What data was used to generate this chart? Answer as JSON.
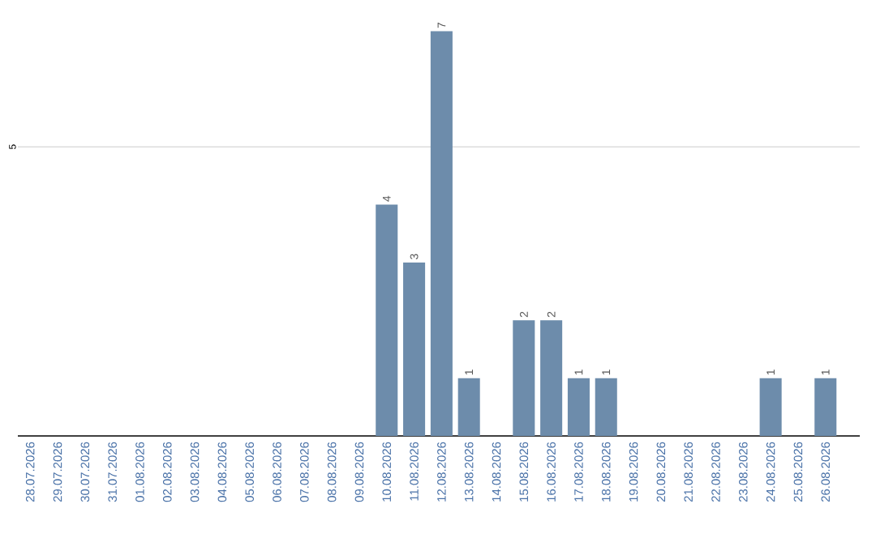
{
  "chart_data": {
    "type": "bar",
    "categories": [
      "28.07.2026",
      "29.07.2026",
      "30.07.2026",
      "31.07.2026",
      "01.08.2026",
      "02.08.2026",
      "03.08.2026",
      "04.08.2026",
      "05.08.2026",
      "06.08.2026",
      "07.08.2026",
      "08.08.2026",
      "09.08.2026",
      "10.08.2026",
      "11.08.2026",
      "12.08.2026",
      "13.08.2026",
      "14.08.2026",
      "15.08.2026",
      "16.08.2026",
      "17.08.2026",
      "18.08.2026",
      "19.08.2026",
      "20.08.2026",
      "21.08.2026",
      "22.08.2026",
      "23.08.2026",
      "24.08.2026",
      "25.08.2026",
      "26.08.2026"
    ],
    "values": [
      null,
      null,
      null,
      null,
      null,
      null,
      null,
      null,
      null,
      null,
      null,
      null,
      null,
      4,
      3,
      7,
      1,
      null,
      2,
      2,
      1,
      1,
      null,
      null,
      null,
      null,
      null,
      1,
      null,
      1
    ],
    "data_labels": true,
    "color": "#6d8cab",
    "ref_lines": [
      {
        "axis": "y",
        "value": 5,
        "label": "5",
        "color": "#cccccc"
      }
    ]
  }
}
